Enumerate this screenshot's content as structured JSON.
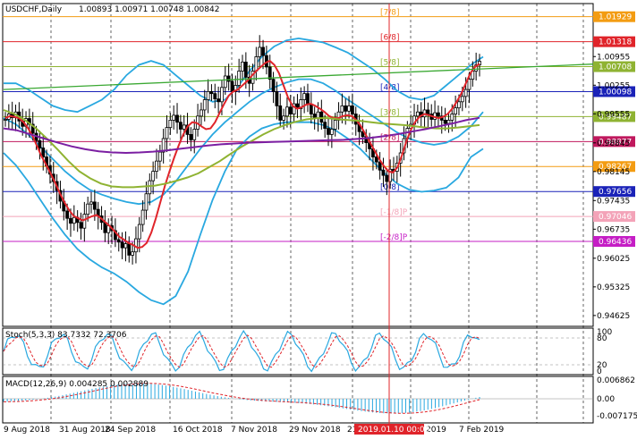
{
  "header": {
    "symbol": "USDCHF,Daily",
    "ohlc": "1.00893 1.00971 1.00748 1.00842"
  },
  "stoch": {
    "label": "Stoch(5,3,3) 83.7332 72.3706",
    "levels": [
      "100",
      "80",
      "20",
      "0"
    ]
  },
  "macd": {
    "label": "MACD(12,26,9) 0.004285 0.002889",
    "levels": [
      "0.006862",
      "0.00",
      "-0.007175"
    ]
  },
  "crosshair_time": "2019.01.10 00:00",
  "chart_data": {
    "type": "candlestick",
    "title": "USDCHF,Daily",
    "ylim": [
      0.9436,
      1.0225
    ],
    "y_ticks": [
      1.00955,
      1.00255,
      0.99555,
      0.98845,
      0.98145,
      0.97435,
      0.96735,
      0.96025,
      0.95325,
      0.94625
    ],
    "x_ticks": [
      "9 Aug 2018",
      "31 Aug 2018",
      "24 Sep 2018",
      "16 Oct 2018",
      "7 Nov 2018",
      "29 Nov 2018",
      "21",
      "2019",
      "7 Feb 2019"
    ],
    "murrey_levels": [
      {
        "label": "[7/8]",
        "value": 1.01929,
        "color": "#f39c12"
      },
      {
        "label": "[6/8]",
        "value": 1.01318,
        "color": "#e0242a"
      },
      {
        "label": "[5/8]",
        "value": 1.00708,
        "color": "#8fb332"
      },
      {
        "label": "[4/8]",
        "value": 1.00098,
        "color": "#1a22b8"
      },
      {
        "label": "[3/8]",
        "value": 0.99487,
        "color": "#8fb332"
      },
      {
        "label": "[2/8]",
        "value": 0.98877,
        "color": "#c0185d"
      },
      {
        "label": "",
        "value": 0.98267,
        "color": "#f39c12"
      },
      {
        "label": "[0/8]",
        "value": 0.97656,
        "color": "#1a22b8"
      },
      {
        "label": "[-1/8]P",
        "value": 0.97046,
        "color": "#f3a3b8"
      },
      {
        "label": "[-2/8]P",
        "value": 0.96436,
        "color": "#c51ec5"
      }
    ],
    "price_boxes": [
      {
        "text": "1.01929",
        "value": 1.01929,
        "color": "#f39c12"
      },
      {
        "text": "1.01318",
        "value": 1.01318,
        "color": "#e0242a"
      },
      {
        "text": "1.00708",
        "value": 1.00708,
        "color": "#8fb332"
      },
      {
        "text": "1.00098",
        "value": 1.00098,
        "color": "#1a22b8"
      },
      {
        "text": "0.99487",
        "value": 0.99487,
        "color": "#8fb332"
      },
      {
        "text": "0.98877",
        "value": 0.98877,
        "color": "#c0185d"
      },
      {
        "text": "0.98267",
        "value": 0.98267,
        "color": "#f39c12"
      },
      {
        "text": "0.97656",
        "value": 0.97656,
        "color": "#1a22b8"
      },
      {
        "text": "0.97046",
        "value": 0.97046,
        "color": "#f3a3b8"
      },
      {
        "text": "0.96436",
        "value": 0.96436,
        "color": "#c51ec5"
      }
    ],
    "close_series": [
      0.9942,
      0.9955,
      0.9946,
      0.996,
      0.9938,
      0.9925,
      0.9944,
      0.993,
      0.9908,
      0.989,
      0.9872,
      0.985,
      0.9828,
      0.9808,
      0.979,
      0.9768,
      0.9742,
      0.9718,
      0.97,
      0.9688,
      0.9702,
      0.969,
      0.9676,
      0.971,
      0.9735,
      0.974,
      0.9722,
      0.9706,
      0.969,
      0.9665,
      0.9682,
      0.967,
      0.9648,
      0.9642,
      0.9628,
      0.9638,
      0.961,
      0.9618,
      0.965,
      0.9685,
      0.972,
      0.976,
      0.9792,
      0.9815,
      0.984,
      0.9862,
      0.9895,
      0.9922,
      0.994,
      0.9952,
      0.9935,
      0.9918,
      0.9928,
      0.9905,
      0.9892,
      0.9918,
      0.995,
      0.9965,
      0.999,
      1.001,
      1.0005,
      0.9992,
      0.9985,
      1.002,
      1.0048,
      1.0035,
      1.001,
      1.0025,
      1.006,
      1.0082,
      1.0045,
      1.003,
      1.006,
      1.0095,
      1.0118,
      1.0098,
      1.007,
      1.004,
      1.001,
      0.9975,
      0.994,
      0.995,
      0.9972,
      0.9955,
      0.998,
      0.9968,
      0.999,
      1.0005,
      0.9978,
      0.9955,
      0.9945,
      0.996,
      0.9935,
      0.992,
      0.9905,
      0.9918,
      0.994,
      0.996,
      0.9975,
      0.9962,
      0.9975,
      0.9955,
      0.993,
      0.9912,
      0.99,
      0.9885,
      0.987,
      0.985,
      0.9838,
      0.9818,
      0.9805,
      0.979,
      0.982,
      0.9815,
      0.9835,
      0.986,
      0.9895,
      0.992,
      0.993,
      0.995,
      0.996,
      0.9948,
      0.9965,
      0.9955,
      0.9942,
      0.9958,
      0.995,
      0.994,
      0.9932,
      0.994,
      0.9955,
      0.997,
      0.9985,
      0.9998,
      1.0015,
      1.004,
      1.006,
      1.0075,
      1.0084
    ],
    "series": [
      {
        "type": "ma",
        "color": "#e0242a",
        "values": [
          0.9945,
          0.995,
          0.9948,
          0.9945,
          0.9935,
          0.992,
          0.99,
          0.9875,
          0.985,
          0.983,
          0.9808,
          0.9785,
          0.976,
          0.9738,
          0.972,
          0.9706,
          0.97,
          0.9695,
          0.97,
          0.9705,
          0.9708,
          0.97,
          0.969,
          0.968,
          0.9668,
          0.9655,
          0.9648,
          0.964,
          0.9635,
          0.9628,
          0.963,
          0.964,
          0.9665,
          0.97,
          0.974,
          0.978,
          0.9815,
          0.9848,
          0.9878,
          0.9905,
          0.9925,
          0.9935,
          0.9933,
          0.9925,
          0.9918,
          0.992,
          0.9935,
          0.9958,
          0.998,
          1.0,
          1.001,
          1.0015,
          1.0025,
          1.0035,
          1.0048,
          1.006,
          1.007,
          1.008,
          1.0085,
          1.0075,
          1.0055,
          1.0025,
          0.9995,
          0.9975,
          0.9968,
          0.9972,
          0.9978,
          0.998,
          0.9975,
          0.9968,
          0.996,
          0.995,
          0.9945,
          0.9945,
          0.995,
          0.9952,
          0.995,
          0.994,
          0.9925,
          0.9905,
          0.9885,
          0.9865,
          0.9845,
          0.9828,
          0.9815,
          0.9812,
          0.9825,
          0.9855,
          0.989,
          0.9918,
          0.9938,
          0.995,
          0.9955,
          0.9952,
          0.9948,
          0.9945,
          0.9948,
          0.9955,
          0.9968,
          0.9985,
          1.0005,
          1.003,
          1.0055,
          1.007,
          1.0078
        ]
      },
      {
        "type": "ma",
        "color": "#8fb332",
        "values": [
          0.9965,
          0.9955,
          0.994,
          0.992,
          0.9895,
          0.9868,
          0.984,
          0.9815,
          0.9798,
          0.9785,
          0.9778,
          0.9776,
          0.9776,
          0.9778,
          0.978,
          0.9785,
          0.9792,
          0.98,
          0.981,
          0.9825,
          0.984,
          0.9858,
          0.9875,
          0.989,
          0.9905,
          0.9918,
          0.9928,
          0.9936,
          0.9942,
          0.9945,
          0.9945,
          0.9942,
          0.994,
          0.9938,
          0.9935,
          0.9932,
          0.993,
          0.9928,
          0.9925,
          0.9922,
          0.992,
          0.992,
          0.9922,
          0.9925,
          0.9928
        ]
      },
      {
        "type": "ma",
        "color": "#7b1fa2",
        "values": [
          0.992,
          0.9915,
          0.9905,
          0.9895,
          0.9885,
          0.9876,
          0.9869,
          0.9864,
          0.9861,
          0.986,
          0.9861,
          0.9863,
          0.9866,
          0.987,
          0.9874,
          0.9878,
          0.9881,
          0.9883,
          0.9885,
          0.9886,
          0.9887,
          0.9888,
          0.9889,
          0.989,
          0.9891,
          0.9892,
          0.9894,
          0.9897,
          0.9901,
          0.9906,
          0.9912,
          0.9918,
          0.9925,
          0.9932,
          0.994,
          0.9946
        ]
      },
      {
        "type": "trend",
        "color": "#3aa832",
        "values": [
          1.0015,
          1.0077
        ]
      }
    ],
    "bollinger_upper": [
      1.003,
      1.003,
      1.0015,
      0.9995,
      0.9975,
      0.9965,
      0.996,
      0.9975,
      0.999,
      1.0015,
      1.005,
      1.0075,
      1.0085,
      1.0075,
      1.005,
      1.0025,
      1.0,
      0.9985,
      0.999,
      1.002,
      1.006,
      1.0095,
      1.012,
      1.0135,
      1.014,
      1.0135,
      1.013,
      1.0118,
      1.0105,
      1.0085,
      1.0065,
      1.004,
      1.0012,
      0.9995,
      0.999,
      1.0,
      1.0025,
      1.005,
      1.0075,
      1.0095
    ],
    "bollinger_middle": [
      0.9945,
      0.993,
      0.9905,
      0.9875,
      0.9845,
      0.9815,
      0.979,
      0.977,
      0.9758,
      0.9748,
      0.974,
      0.9735,
      0.974,
      0.9758,
      0.979,
      0.983,
      0.987,
      0.9905,
      0.9935,
      0.996,
      0.9985,
      1.0005,
      1.002,
      1.0032,
      1.004,
      1.004,
      1.003,
      1.0012,
      0.999,
      0.997,
      0.995,
      0.993,
      0.991,
      0.9895,
      0.9885,
      0.988,
      0.9885,
      0.99,
      0.9925,
      0.996
    ],
    "bollinger_lower": [
      0.986,
      0.983,
      0.979,
      0.9745,
      0.97,
      0.966,
      0.9625,
      0.96,
      0.958,
      0.9565,
      0.9545,
      0.952,
      0.95,
      0.949,
      0.951,
      0.957,
      0.966,
      0.9745,
      0.9815,
      0.987,
      0.99,
      0.992,
      0.993,
      0.9935,
      0.9935,
      0.9935,
      0.9928,
      0.9915,
      0.9895,
      0.987,
      0.984,
      0.981,
      0.9785,
      0.977,
      0.9765,
      0.9768,
      0.9775,
      0.98,
      0.985,
      0.987
    ]
  }
}
